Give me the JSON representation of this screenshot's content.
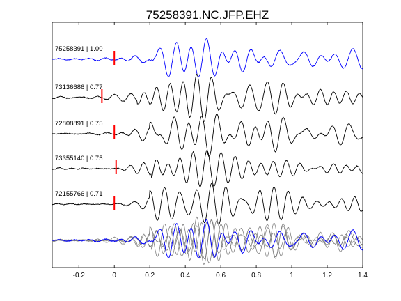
{
  "title": "75258391.NC.JFP.EHZ",
  "colors": {
    "master": "#0000ff",
    "trace": "#000000",
    "overlay": "#808080",
    "pick": "#ff0000",
    "axes": "#000000"
  },
  "chart_data": {
    "type": "line",
    "title": "75258391.NC.JFP.EHZ",
    "xlim": [
      -0.35,
      1.4
    ],
    "xticks": [
      "-0.2",
      "0",
      "0.2",
      "0.4",
      "0.6",
      "0.8",
      "1",
      "1.2",
      "1.4"
    ],
    "xtick_values": [
      -0.2,
      0,
      0.2,
      0.4,
      0.6,
      0.8,
      1.0,
      1.2,
      1.4
    ],
    "grid": false,
    "traces": [
      {
        "event_id": "75258391",
        "correlation": "1.00",
        "label": "75258391 | 1.00",
        "pick_time": 0.0,
        "color": "blue"
      },
      {
        "event_id": "73136686",
        "correlation": "0.77",
        "label": "73136686 | 0.77",
        "pick_time": -0.07,
        "color": "black"
      },
      {
        "event_id": "72808891",
        "correlation": "0.75",
        "label": "72808891 | 0.75",
        "pick_time": 0.0,
        "color": "black"
      },
      {
        "event_id": "73355140",
        "correlation": "0.75",
        "label": "73355140 | 0.75",
        "pick_time": 0.01,
        "color": "black"
      },
      {
        "event_id": "72155766",
        "correlation": "0.71",
        "label": "72155766 | 0.71",
        "pick_time": 0.0,
        "color": "black"
      }
    ],
    "overlay": {
      "description_visible": false,
      "master_color": "blue",
      "others_color": "gray"
    }
  }
}
